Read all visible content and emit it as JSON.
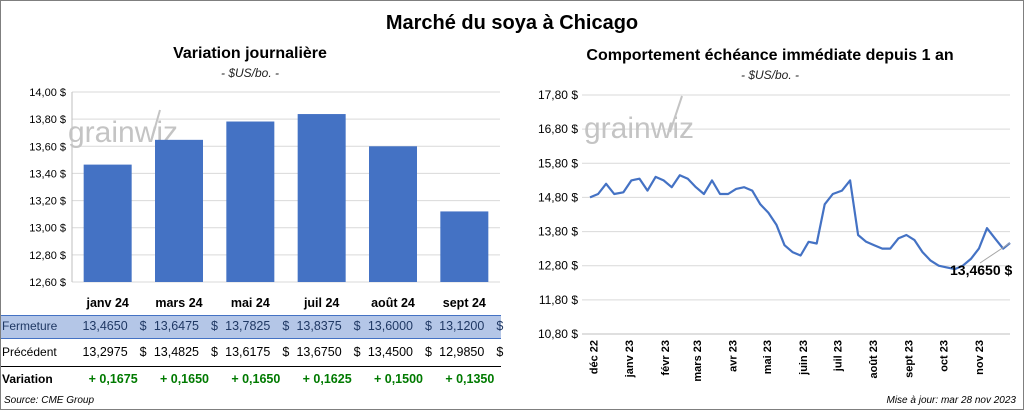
{
  "title": "Marché du soya à Chicago",
  "left_panel": {
    "title": "Variation journalière",
    "unit": "- $US/bo. -"
  },
  "right_panel": {
    "title": "Comportement échéance immédiate depuis 1 an",
    "unit": "- $US/bo. -",
    "last_value_label": "13,4650 $"
  },
  "watermark": "grainwiz",
  "table": {
    "currency": "$",
    "rows": [
      {
        "label": "Fermeture",
        "values": [
          "13,4650",
          "13,6475",
          "13,7825",
          "13,8375",
          "13,6000",
          "13,1200"
        ]
      },
      {
        "label": "Précédent",
        "values": [
          "13,2975",
          "13,4825",
          "13,6175",
          "13,6750",
          "13,4500",
          "12,9850"
        ]
      },
      {
        "label": "Variation",
        "values": [
          "+ 0,1675",
          "+ 0,1650",
          "+ 0,1650",
          "+ 0,1625",
          "+ 0,1500",
          "+ 0,1350"
        ]
      }
    ]
  },
  "footer": {
    "source": "Source: CME Group",
    "updated": "Mise à jour: mar 28 nov 2023"
  },
  "colors": {
    "bar": "#4472c4",
    "line": "#4472c4",
    "header_row": "#b4c6e7",
    "positive": "#007a00"
  },
  "chart_data": [
    {
      "type": "bar",
      "title": "Variation journalière",
      "categories": [
        "janv 24",
        "mars 24",
        "mai 24",
        "juil 24",
        "août 24",
        "sept 24"
      ],
      "values": [
        13.465,
        13.6475,
        13.7825,
        13.8375,
        13.6,
        13.12
      ],
      "ylim": [
        12.6,
        14.0
      ],
      "yticks": [
        "12,60 $",
        "12,80 $",
        "13,00 $",
        "13,20 $",
        "13,40 $",
        "13,60 $",
        "13,80 $",
        "14,00 $"
      ],
      "grid": true
    },
    {
      "type": "line",
      "title": "Comportement échéance immédiate depuis 1 an",
      "ylim": [
        10.8,
        17.8
      ],
      "yticks": [
        "10,80 $",
        "11,80 $",
        "12,80 $",
        "13,80 $",
        "14,80 $",
        "15,80 $",
        "16,80 $",
        "17,80 $"
      ],
      "xticks": [
        "déc 22",
        "janv 23",
        "févr 23",
        "mars 23",
        "avr 23",
        "mai 23",
        "juin 23",
        "juil 23",
        "août 23",
        "sept 23",
        "oct 23",
        "nov 23"
      ],
      "grid": true,
      "x": [
        "2022-11-28",
        "2022-12-05",
        "2022-12-12",
        "2022-12-19",
        "2022-12-27",
        "2023-01-03",
        "2023-01-10",
        "2023-01-17",
        "2023-01-24",
        "2023-01-31",
        "2023-02-07",
        "2023-02-14",
        "2023-02-21",
        "2023-02-28",
        "2023-03-07",
        "2023-03-14",
        "2023-03-21",
        "2023-03-28",
        "2023-04-04",
        "2023-04-11",
        "2023-04-18",
        "2023-04-25",
        "2023-05-02",
        "2023-05-09",
        "2023-05-16",
        "2023-05-23",
        "2023-05-30",
        "2023-06-06",
        "2023-06-13",
        "2023-06-20",
        "2023-06-27",
        "2023-07-05",
        "2023-07-12",
        "2023-07-19",
        "2023-07-26",
        "2023-08-02",
        "2023-08-09",
        "2023-08-16",
        "2023-08-23",
        "2023-08-30",
        "2023-09-06",
        "2023-09-13",
        "2023-09-20",
        "2023-09-27",
        "2023-10-04",
        "2023-10-11",
        "2023-10-18",
        "2023-10-25",
        "2023-11-01",
        "2023-11-08",
        "2023-11-15",
        "2023-11-22",
        "2023-11-28"
      ],
      "y": [
        14.8,
        14.9,
        15.2,
        14.9,
        14.95,
        15.3,
        15.35,
        15.0,
        15.4,
        15.3,
        15.1,
        15.45,
        15.35,
        15.1,
        14.9,
        15.3,
        14.9,
        14.9,
        15.05,
        15.1,
        15.0,
        14.6,
        14.35,
        14.0,
        13.4,
        13.2,
        13.1,
        13.5,
        13.45,
        14.6,
        14.9,
        15.0,
        15.3,
        13.7,
        13.5,
        13.4,
        13.3,
        13.3,
        13.6,
        13.7,
        13.55,
        13.2,
        12.95,
        12.8,
        12.75,
        12.7,
        12.8,
        13.0,
        13.3,
        13.9,
        13.6,
        13.3,
        13.465
      ]
    }
  ]
}
